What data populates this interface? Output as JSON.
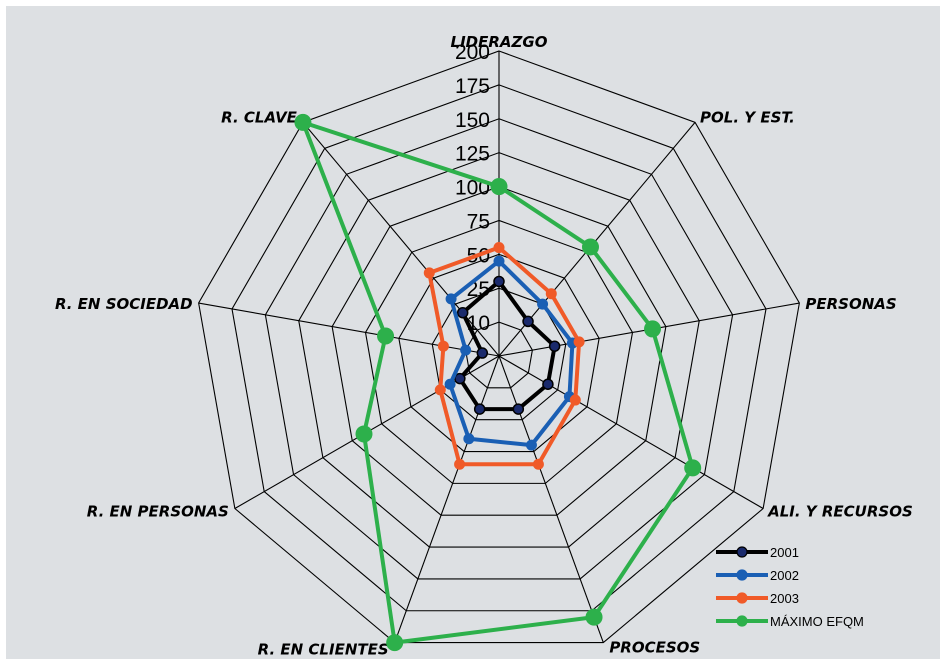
{
  "chart_data": {
    "type": "radar",
    "title": "",
    "categories": [
      "LIDERAZGO",
      "POL. Y EST.",
      "PERSONAS",
      "ALI. Y RECURSOS",
      "PROCESOS",
      "R. EN CLIENTES",
      "R. EN PERSONAS",
      "R. EN SOCIEDAD",
      "R. CLAVE"
    ],
    "ticks": [
      10,
      25,
      50,
      75,
      100,
      125,
      150,
      175,
      200
    ],
    "rlim": [
      0,
      200
    ],
    "grid": true,
    "legend_position": "bottom-right",
    "series": [
      {
        "name": "2001",
        "color": "#000000",
        "marker_fill": "#1a2a6c",
        "values": [
          30,
          15,
          20,
          20,
          20,
          20,
          15,
          5,
          20
        ]
      },
      {
        "name": "2002",
        "color": "#1a5fb4",
        "marker_fill": "#1a5fb4",
        "values": [
          45,
          25,
          30,
          35,
          45,
          40,
          20,
          10,
          30
        ]
      },
      {
        "name": "2003",
        "color": "#f05a28",
        "marker_fill": "#f05a28",
        "values": [
          55,
          35,
          35,
          40,
          60,
          60,
          25,
          20,
          55
        ]
      },
      {
        "name": "MÁXIMO EFQM",
        "color": "#2db04b",
        "marker_fill": "#2db04b",
        "values": [
          100,
          80,
          90,
          140,
          180,
          200,
          90,
          60,
          200
        ]
      }
    ]
  }
}
